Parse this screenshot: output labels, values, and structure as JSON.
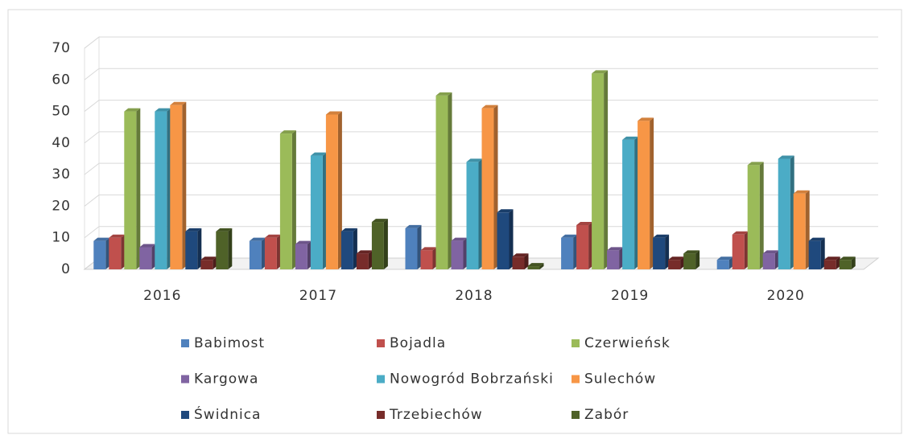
{
  "chart_data": {
    "type": "bar3d",
    "categories": [
      "2016",
      "2017",
      "2018",
      "2019",
      "2020"
    ],
    "series": [
      {
        "name": "Babimost",
        "color": "#4f81bd",
        "values": [
          9,
          9,
          13,
          10,
          3
        ]
      },
      {
        "name": "Bojadla",
        "color": "#c0504d",
        "values": [
          10,
          10,
          6,
          14,
          11
        ]
      },
      {
        "name": "Czerwieńsk",
        "color": "#9bbb59",
        "values": [
          50,
          43,
          55,
          62,
          33
        ]
      },
      {
        "name": "Kargowa",
        "color": "#8064a2",
        "values": [
          7,
          8,
          9,
          6,
          5
        ]
      },
      {
        "name": "Nowogród Bobrzański",
        "color": "#4bacc6",
        "values": [
          50,
          36,
          34,
          41,
          35
        ]
      },
      {
        "name": "Sulechów",
        "color": "#f79646",
        "values": [
          52,
          49,
          51,
          47,
          24
        ]
      },
      {
        "name": "Świdnica",
        "color": "#1f497d",
        "values": [
          12,
          12,
          18,
          10,
          9
        ]
      },
      {
        "name": "Trzebiechów",
        "color": "#772c2a",
        "values": [
          3,
          5,
          4,
          3,
          3
        ]
      },
      {
        "name": "Zabór",
        "color": "#4f6228",
        "values": [
          12,
          15,
          1,
          5,
          3
        ]
      }
    ],
    "ylim": [
      0,
      70
    ],
    "yticks": [
      0,
      10,
      20,
      30,
      40,
      50,
      60,
      70
    ],
    "grid": true,
    "legend": "bottom"
  }
}
